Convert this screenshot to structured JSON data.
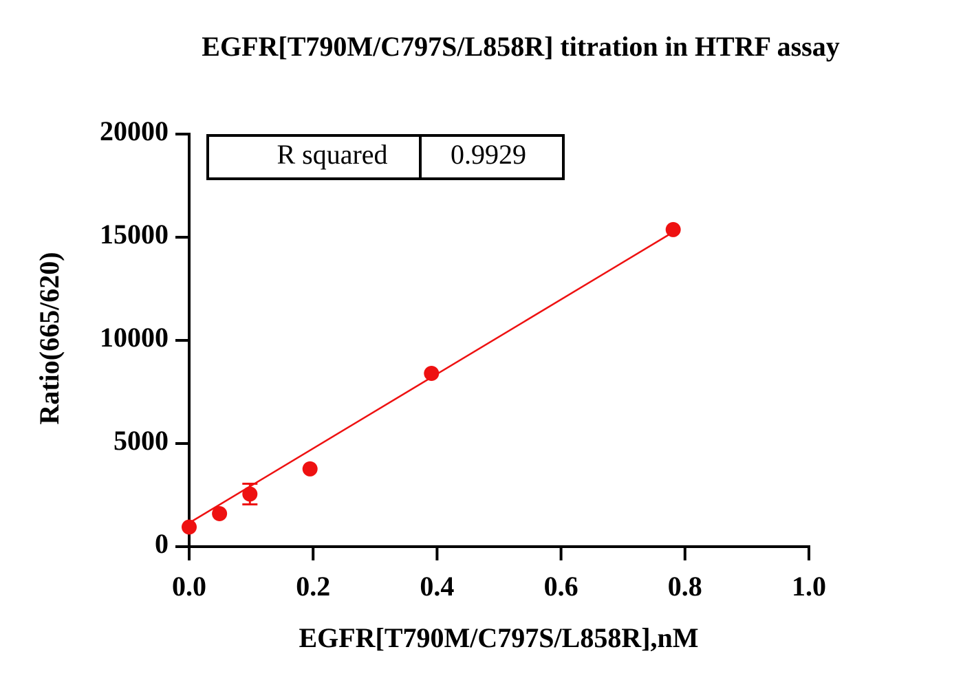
{
  "chart_data": {
    "type": "scatter",
    "title": "EGFR[T790M/C797S/L858R] titration in HTRF assay",
    "x_label": "EGFR[T790M/C797S/L858R],nM",
    "y_label": "Ratio(665/620)",
    "series": [
      {
        "color": "#ee1111",
        "x": [
          0,
          0.049,
          0.098,
          0.195,
          0.391,
          0.781
        ],
        "values": [
          950,
          1600,
          2550,
          3770,
          8400,
          15370
        ],
        "errors": [
          null,
          null,
          500,
          null,
          null,
          null
        ]
      }
    ],
    "fit": {
      "color": "#ee1111",
      "x": [
        0,
        0.781
      ],
      "y": [
        1150,
        15250
      ]
    },
    "annotation": {
      "label": "R squared",
      "value": "0.9929"
    },
    "xlim": [
      0,
      1
    ],
    "xticks": [
      {
        "value": 0,
        "label": "0.0"
      },
      0.2,
      0.4,
      0.6,
      0.8,
      {
        "value": 1,
        "label": "1.0"
      }
    ],
    "ylim": [
      0,
      20000
    ],
    "yticks": [
      0,
      5000,
      10000,
      15000,
      20000
    ],
    "grid": false
  }
}
